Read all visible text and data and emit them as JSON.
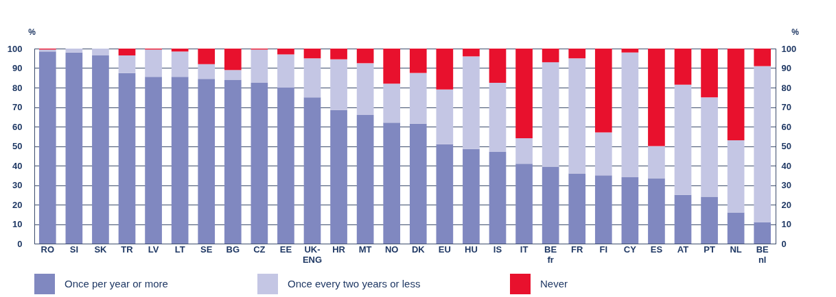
{
  "chart_data": {
    "type": "bar",
    "stacked": true,
    "ylabel": "%",
    "y2label": "%",
    "categories": [
      "RO",
      "SI",
      "SK",
      "TR",
      "LV",
      "LT",
      "SE",
      "BG",
      "CZ",
      "EE",
      "UK-\nENG",
      "HR",
      "MT",
      "NO",
      "DK",
      "EU",
      "HU",
      "IS",
      "IT",
      "BE\nfr",
      "FR",
      "FI",
      "CY",
      "ES",
      "AT",
      "PT",
      "NL",
      "BE\nnl"
    ],
    "series": [
      {
        "name": "Once per year or more",
        "color": "#8088c0",
        "values": [
          98.5,
          98,
          96.5,
          87.5,
          85.5,
          85.5,
          84.5,
          84,
          82.5,
          80,
          75,
          68.5,
          66,
          62,
          61.5,
          51,
          48.5,
          47,
          41,
          39.5,
          36,
          35,
          34,
          33.5,
          25,
          24,
          16,
          11
        ]
      },
      {
        "name": "Once every two years or less",
        "color": "#c4c6e4",
        "values": [
          1,
          2,
          3.5,
          9,
          14,
          13,
          7.5,
          5,
          17,
          17,
          20,
          26,
          26.5,
          20,
          26,
          28,
          47.5,
          35.5,
          13,
          53.5,
          59,
          22,
          64,
          16.5,
          56.5,
          51,
          37,
          80
        ]
      },
      {
        "name": "Never",
        "color": "#e8112d",
        "values": [
          0.5,
          0,
          0,
          3.5,
          0.5,
          1.5,
          8,
          11,
          0.5,
          3,
          5,
          5.5,
          7.5,
          18,
          12.5,
          21,
          4,
          17.5,
          46,
          7,
          5,
          43,
          2,
          50,
          18.5,
          25,
          47,
          9
        ]
      }
    ],
    "ylim": [
      0,
      100
    ],
    "yticks": [
      0,
      10,
      20,
      30,
      40,
      50,
      60,
      70,
      80,
      90,
      100
    ],
    "y2lim": [
      0,
      100
    ],
    "y2ticks": [
      0,
      10,
      20,
      30,
      40,
      50,
      60,
      70,
      80,
      90,
      100
    ],
    "grid": "y",
    "legend": "bottom"
  }
}
